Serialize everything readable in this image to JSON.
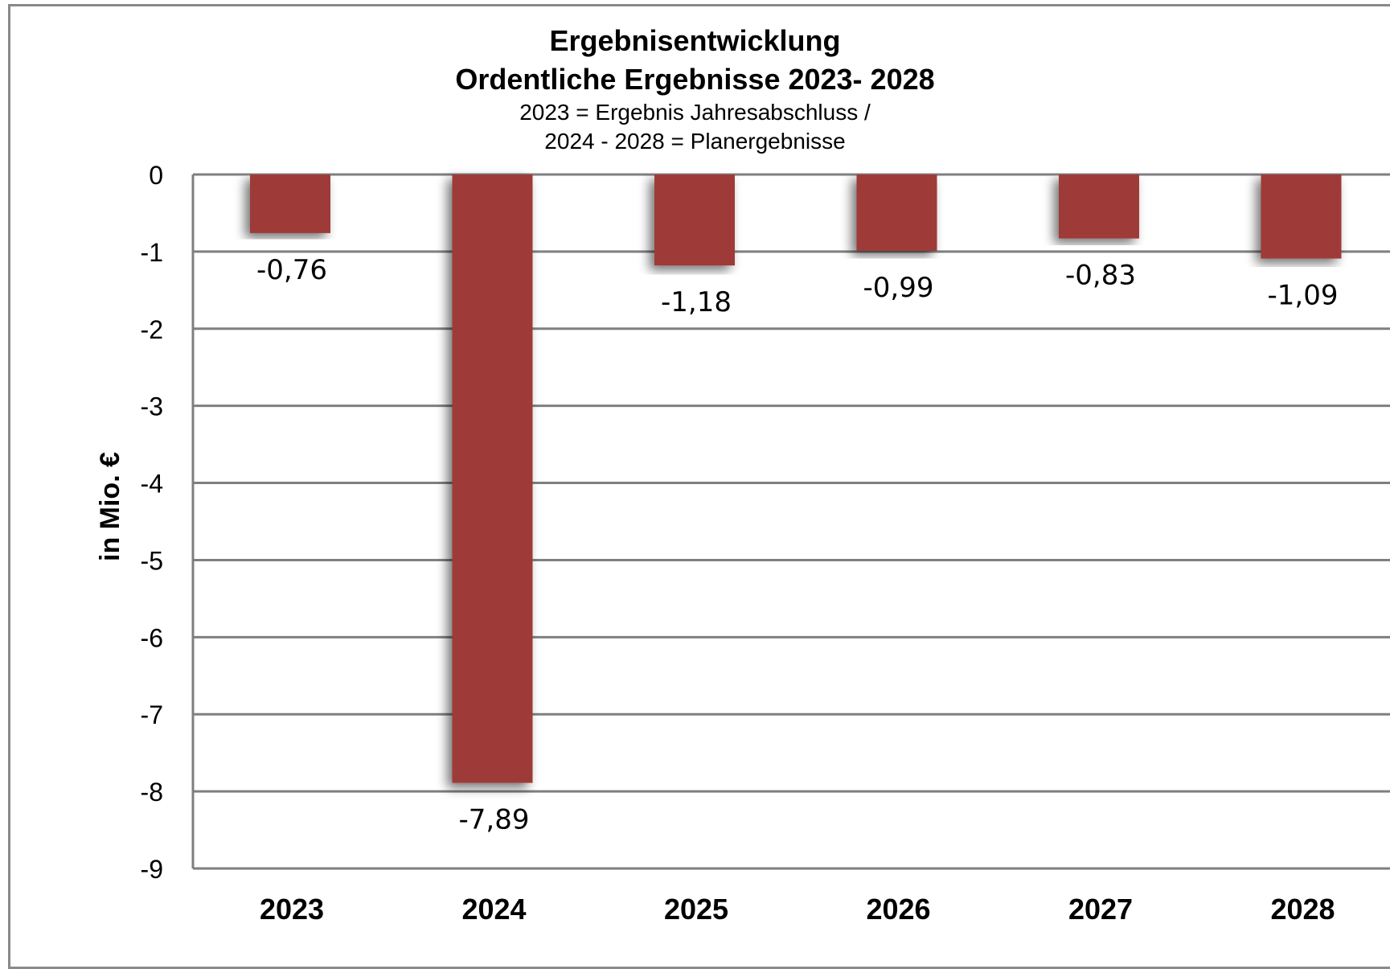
{
  "chart_data": {
    "type": "bar",
    "title": "Ergebnisentwicklung",
    "title2": "Ordentliche Ergebnisse 2023- 2028",
    "subtitle1": "2023 = Ergebnis Jahresabschluss  /",
    "subtitle2": "2024  - 2028 = Planergebnisse",
    "ylabel": "in Mio. €",
    "xlabel": "",
    "categories": [
      "2023",
      "2024",
      "2025",
      "2026",
      "2027",
      "2028"
    ],
    "values": [
      -0.76,
      -7.89,
      -1.18,
      -0.99,
      -0.83,
      -1.09
    ],
    "data_labels": [
      "-0,76",
      "-7,89",
      "-1,18",
      "-0,99",
      "-0,83",
      "-1,09"
    ],
    "ylim": [
      -9,
      0
    ],
    "yticks": [
      "0",
      "-1",
      "-2",
      "-3",
      "-4",
      "-5",
      "-6",
      "-7",
      "-8",
      "-9"
    ],
    "grid": true,
    "bar_color": "#9e3a38"
  }
}
